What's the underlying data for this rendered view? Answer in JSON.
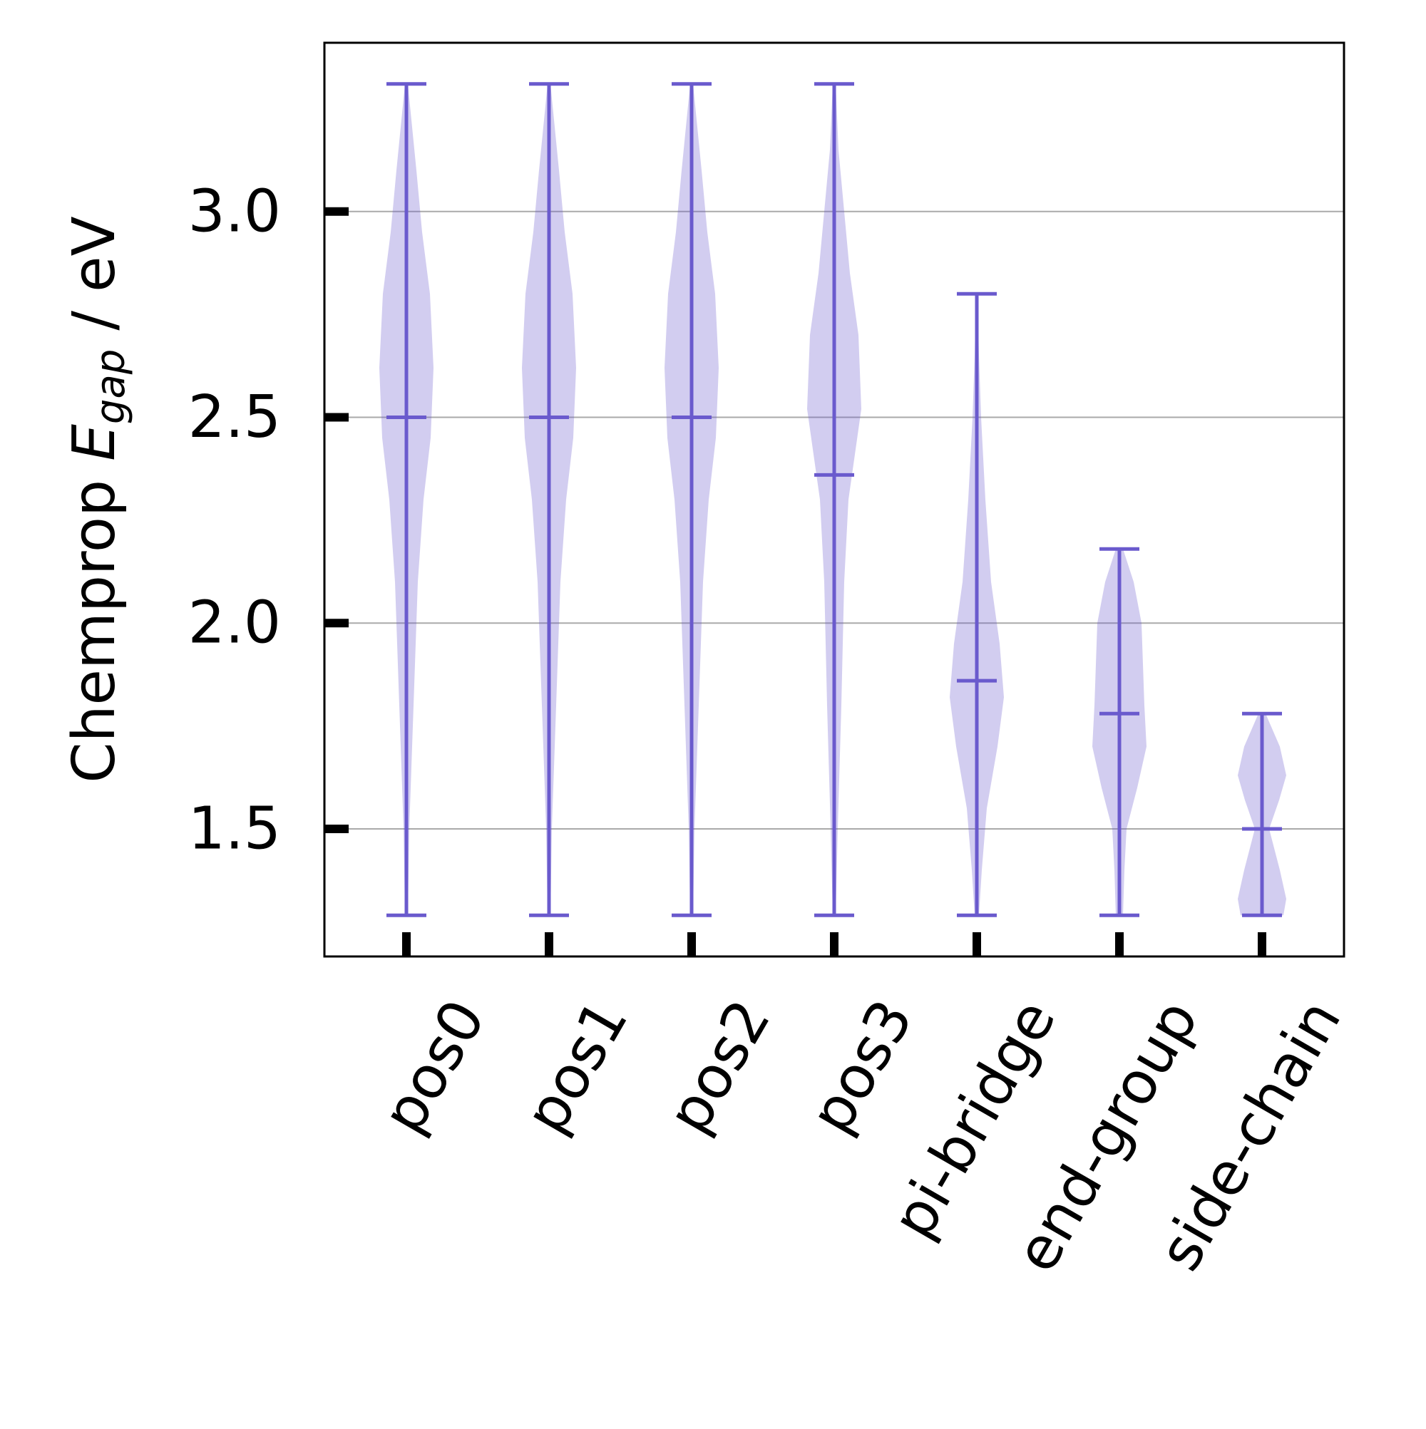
{
  "chart_data": {
    "type": "violin",
    "categories": [
      "pos0",
      "pos1",
      "pos2",
      "pos3",
      "pi-bridge",
      "end-group",
      "side-chain"
    ],
    "ylabel": {
      "prefix": "Chemprop ",
      "symbol": "E",
      "subscript": "gap",
      "suffix": " / eV"
    },
    "ylim": [
      1.19,
      3.41
    ],
    "yticks": [
      1.5,
      2.0,
      2.5,
      3.0
    ],
    "ytick_labels": [
      "1.5",
      "2.0",
      "2.5",
      "3.0"
    ],
    "grid": "y",
    "colors": {
      "body": "#6a5acd",
      "body_opacity": 0.3,
      "lines": "#6a5acd",
      "grid": "#aaaaaa"
    },
    "series": [
      {
        "category": "pos0",
        "min": 1.29,
        "max": 3.31,
        "median": 2.5,
        "profile": [
          [
            1.29,
            0.02
          ],
          [
            1.5,
            0.04
          ],
          [
            1.8,
            0.1
          ],
          [
            2.1,
            0.16
          ],
          [
            2.3,
            0.24
          ],
          [
            2.45,
            0.34
          ],
          [
            2.62,
            0.38
          ],
          [
            2.8,
            0.33
          ],
          [
            2.95,
            0.22
          ],
          [
            3.1,
            0.14
          ],
          [
            3.31,
            0.02
          ]
        ]
      },
      {
        "category": "pos1",
        "min": 1.29,
        "max": 3.31,
        "median": 2.5,
        "profile": [
          [
            1.29,
            0.02
          ],
          [
            1.5,
            0.04
          ],
          [
            1.8,
            0.1
          ],
          [
            2.1,
            0.16
          ],
          [
            2.3,
            0.24
          ],
          [
            2.45,
            0.34
          ],
          [
            2.62,
            0.38
          ],
          [
            2.8,
            0.33
          ],
          [
            2.95,
            0.22
          ],
          [
            3.1,
            0.14
          ],
          [
            3.31,
            0.02
          ]
        ]
      },
      {
        "category": "pos2",
        "min": 1.29,
        "max": 3.31,
        "median": 2.5,
        "profile": [
          [
            1.29,
            0.02
          ],
          [
            1.5,
            0.04
          ],
          [
            1.8,
            0.1
          ],
          [
            2.1,
            0.16
          ],
          [
            2.3,
            0.24
          ],
          [
            2.45,
            0.34
          ],
          [
            2.62,
            0.38
          ],
          [
            2.8,
            0.33
          ],
          [
            2.95,
            0.22
          ],
          [
            3.1,
            0.14
          ],
          [
            3.31,
            0.02
          ]
        ]
      },
      {
        "category": "pos3",
        "min": 1.29,
        "max": 3.31,
        "median": 2.36,
        "profile": [
          [
            1.29,
            0.02
          ],
          [
            1.5,
            0.05
          ],
          [
            1.8,
            0.1
          ],
          [
            2.1,
            0.14
          ],
          [
            2.3,
            0.2
          ],
          [
            2.52,
            0.38
          ],
          [
            2.7,
            0.34
          ],
          [
            2.85,
            0.22
          ],
          [
            3.0,
            0.14
          ],
          [
            3.15,
            0.06
          ],
          [
            3.31,
            0.02
          ]
        ]
      },
      {
        "category": "pi-bridge",
        "min": 1.29,
        "max": 2.8,
        "median": 1.86,
        "profile": [
          [
            1.29,
            0.03
          ],
          [
            1.4,
            0.07
          ],
          [
            1.55,
            0.14
          ],
          [
            1.7,
            0.29
          ],
          [
            1.82,
            0.38
          ],
          [
            1.95,
            0.32
          ],
          [
            2.1,
            0.2
          ],
          [
            2.3,
            0.12
          ],
          [
            2.5,
            0.06
          ],
          [
            2.65,
            0.03
          ],
          [
            2.8,
            0.01
          ]
        ]
      },
      {
        "category": "end-group",
        "min": 1.29,
        "max": 2.18,
        "median": 1.78,
        "profile": [
          [
            1.29,
            0.05
          ],
          [
            1.4,
            0.07
          ],
          [
            1.5,
            0.1
          ],
          [
            1.6,
            0.25
          ],
          [
            1.7,
            0.38
          ],
          [
            1.8,
            0.35
          ],
          [
            1.9,
            0.33
          ],
          [
            2.0,
            0.31
          ],
          [
            2.1,
            0.2
          ],
          [
            2.18,
            0.05
          ]
        ]
      },
      {
        "category": "side-chain",
        "min": 1.29,
        "max": 1.78,
        "median": 1.5,
        "profile": [
          [
            1.29,
            0.3
          ],
          [
            1.33,
            0.34
          ],
          [
            1.4,
            0.25
          ],
          [
            1.5,
            0.1
          ],
          [
            1.57,
            0.24
          ],
          [
            1.63,
            0.34
          ],
          [
            1.7,
            0.25
          ],
          [
            1.78,
            0.05
          ]
        ]
      }
    ]
  }
}
